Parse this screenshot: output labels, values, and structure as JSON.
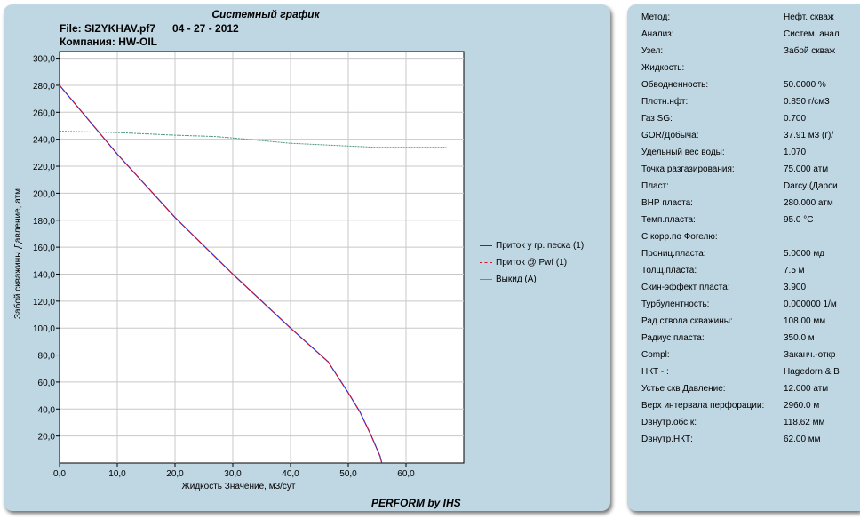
{
  "header": {
    "title": "Системный график",
    "file_label": "File: SIZYKHAV.pf7",
    "date": "04 - 27 - 2012",
    "company": "Компания: HW-OIL"
  },
  "footer": "PERFORM by IHS",
  "legend": [
    {
      "label": "Приток у гр. песка (1)",
      "color": "#1f2fd6",
      "dash": false
    },
    {
      "label": "Приток @ Pwf (1)",
      "color": "#d6142c",
      "dash": true
    },
    {
      "label": "Выкид (A)",
      "color": "#4e9a82",
      "dash": false
    }
  ],
  "chart_data": {
    "type": "line",
    "title": "Системный график",
    "xlabel": "Жидкость Значение, м3/сут",
    "ylabel": "Забой скважины Давление, атм",
    "xlim": [
      0,
      70
    ],
    "ylim": [
      0,
      305
    ],
    "x_ticks": [
      "0,0",
      "10,0",
      "20,0",
      "30,0",
      "40,0",
      "50,0",
      "60,0"
    ],
    "y_ticks": [
      "20,0",
      "40,0",
      "60,0",
      "80,0",
      "100,0",
      "120,0",
      "140,0",
      "160,0",
      "180,0",
      "200,0",
      "220,0",
      "240,0",
      "260,0",
      "280,0",
      "300,0"
    ],
    "grid": true,
    "legend_position": "right",
    "series": [
      {
        "name": "Приток у гр. песка (1)",
        "color": "#1f2fd6",
        "x": [
          0,
          10,
          20,
          30,
          40,
          46.5,
          50,
          52,
          54,
          55,
          55.5,
          55.8
        ],
        "y": [
          280,
          229,
          182,
          140,
          100,
          75,
          52,
          38,
          20,
          10,
          5,
          0
        ]
      },
      {
        "name": "Приток @ Pwf (1)",
        "color": "#d6142c",
        "x": [
          0,
          10,
          20,
          30,
          40,
          46.5,
          50,
          52,
          54,
          55,
          55.5,
          55.8
        ],
        "y": [
          280,
          229,
          182,
          140,
          100,
          75,
          52,
          38,
          20,
          10,
          5,
          0
        ]
      },
      {
        "name": "Выкид (A)",
        "color": "#4e9a82",
        "x": [
          0,
          10,
          20,
          27,
          30,
          40,
          50,
          55,
          60,
          67
        ],
        "y": [
          246,
          245,
          243,
          242,
          241,
          237,
          235,
          234,
          234,
          234
        ]
      }
    ]
  },
  "info_rows": [
    {
      "label": "Метод:",
      "value": "Нефт. скваж"
    },
    {
      "label": "Анализ:",
      "value": "Систем. анал"
    },
    {
      "label": "Узел:",
      "value": "Забой скваж"
    },
    {
      "label": "Жидкость:",
      "value": ""
    },
    {
      "label": "Обводненность:",
      "value": "50.0000 %"
    },
    {
      "label": "Плотн.нфт:",
      "value": "0.850 г/см3"
    },
    {
      "label": "Газ SG:",
      "value": "0.700"
    },
    {
      "label": "GOR/Добыча:",
      "value": "37.91 м3 (г)/"
    },
    {
      "label": "Удельный вес воды:",
      "value": "1.070"
    },
    {
      "label": "Точка разгазирования:",
      "value": "75.000 атм"
    },
    {
      "label": "Пласт:",
      "value": "Darcy (Дарси"
    },
    {
      "label": "ВНР пласта:",
      "value": "280.000 атм"
    },
    {
      "label": "Темп.пласта:",
      "value": "95.0 °C"
    },
    {
      "label": "С корр.по Фогелю:",
      "value": ""
    },
    {
      "label": "Прониц.пласта:",
      "value": "5.0000 мд"
    },
    {
      "label": "Толщ.пласта:",
      "value": "7.5 м"
    },
    {
      "label": "Скин-эффект пласта:",
      "value": "3.900"
    },
    {
      "label": "Турбулентность:",
      "value": "0.000000 1/м"
    },
    {
      "label": "Рад.ствола скважины:",
      "value": "108.00 мм"
    },
    {
      "label": "Радиус пласта:",
      "value": "350.0 м"
    },
    {
      "label": "Compl:",
      "value": "Заканч.-откр"
    },
    {
      "label": "НКТ - :",
      "value": "Hagedorn & B"
    },
    {
      "label": "Устье скв Давление:",
      "value": "12.000 атм"
    },
    {
      "label": "Верх интервала перфорации:",
      "value": "2960.0 м"
    },
    {
      "label": "Dвнутр.обс.к:",
      "value": "118.62 мм"
    },
    {
      "label": "Dвнутр.НКТ:",
      "value": "62.00 мм"
    }
  ]
}
